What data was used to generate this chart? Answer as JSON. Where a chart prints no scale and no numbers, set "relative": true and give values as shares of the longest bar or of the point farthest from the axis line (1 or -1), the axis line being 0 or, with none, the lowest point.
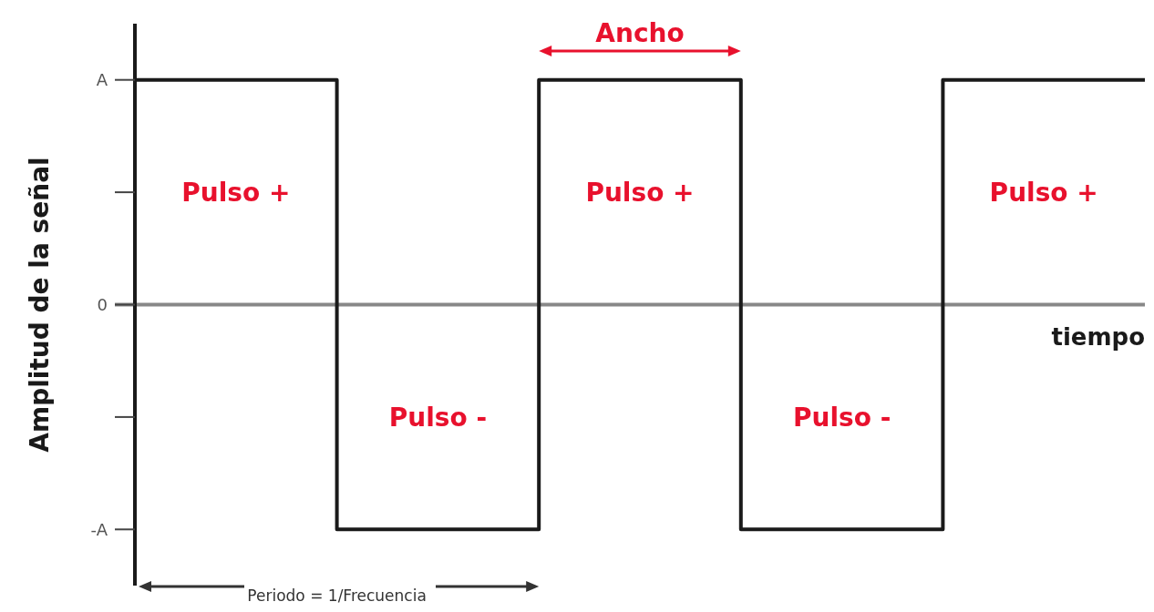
{
  "chart_data": {
    "type": "step",
    "relative": true,
    "categories": [
      null,
      null,
      null,
      null,
      null,
      null
    ],
    "series": [
      {
        "color": "#1a1a1a",
        "values": [
          1,
          -1,
          1,
          -1,
          1,
          1
        ]
      }
    ],
    "ylabel": "Amplitud de la señal",
    "xlabel": "tiempo",
    "annotations": [
      "Pulso +",
      "Pulso -",
      "Pulso +",
      "Pulso -",
      "Pulso +",
      "Ancho",
      "Periodo = 1/Frecuencia",
      "A",
      "0",
      "-A"
    ]
  }
}
